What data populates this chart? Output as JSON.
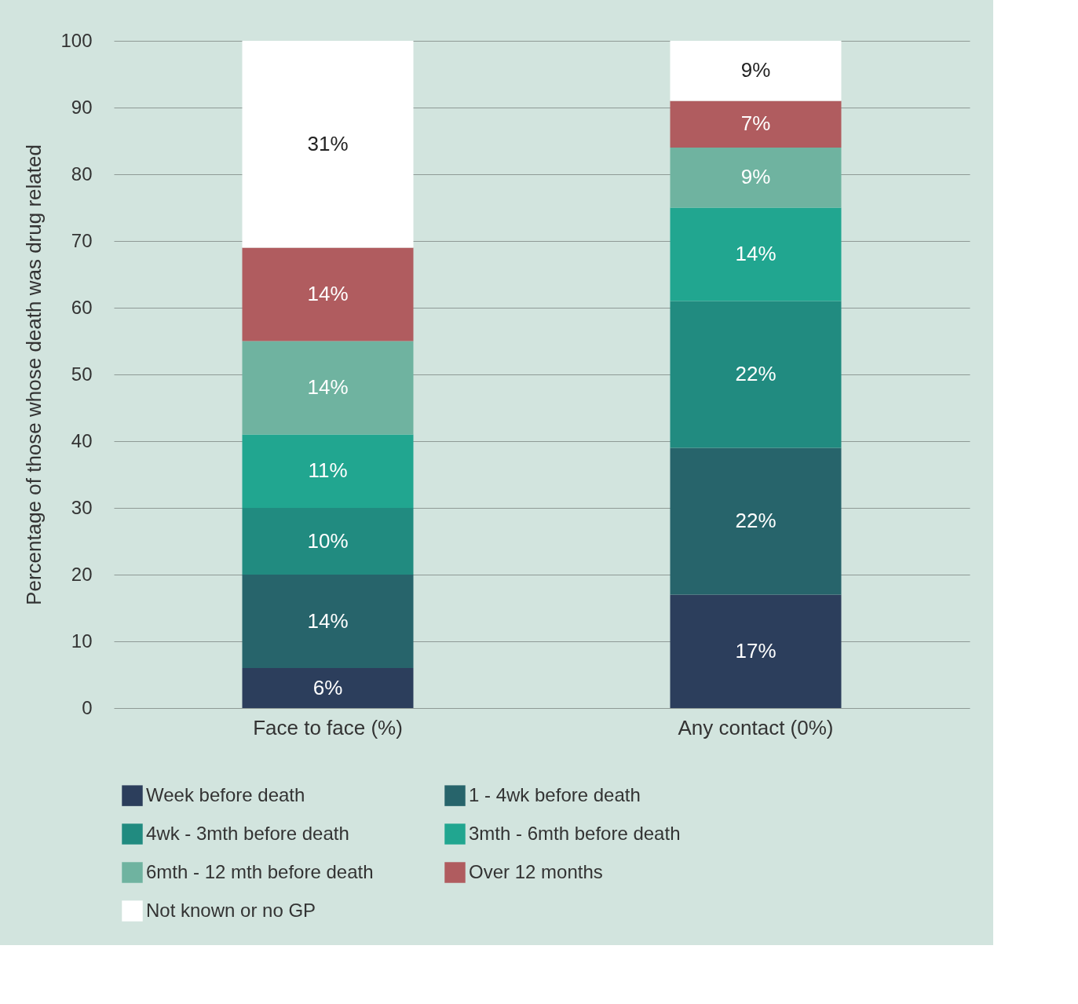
{
  "chart_data": {
    "type": "bar",
    "stacked": true,
    "ylabel": "Percentage of those whose death was drug related",
    "categories": [
      "Face to face (%)",
      "Any contact (0%)"
    ],
    "ylim": [
      0,
      100
    ],
    "yticks": [
      0,
      10,
      20,
      30,
      40,
      50,
      60,
      70,
      80,
      90,
      100
    ],
    "grid": "y",
    "legend": "bottom",
    "series": [
      {
        "name": "Week before death",
        "color": "#2c3e5c",
        "values": [
          6,
          17
        ],
        "value_labels": [
          "6%",
          "17%"
        ]
      },
      {
        "name": "1 - 4wk  before death",
        "color": "#27646b",
        "values": [
          14,
          22
        ],
        "value_labels": [
          "14%",
          "22%"
        ]
      },
      {
        "name": "4wk - 3mth before death",
        "color": "#218b80",
        "values": [
          10,
          22
        ],
        "value_labels": [
          "10%",
          "22%"
        ]
      },
      {
        "name": "3mth - 6mth before death",
        "color": "#21a690",
        "values": [
          11,
          14
        ],
        "value_labels": [
          "11%",
          "14%"
        ]
      },
      {
        "name": "6mth - 12 mth before death",
        "color": "#6fb3a0",
        "values": [
          14,
          9
        ],
        "value_labels": [
          "14%",
          "9%"
        ]
      },
      {
        "name": "Over 12 months",
        "color": "#b05c5f",
        "values": [
          14,
          7
        ],
        "value_labels": [
          "14%",
          "7%"
        ]
      },
      {
        "name": "Not known or no GP",
        "color": "#ffffff",
        "values": [
          31,
          9
        ],
        "value_labels": [
          "31%",
          "9%"
        ]
      }
    ]
  }
}
